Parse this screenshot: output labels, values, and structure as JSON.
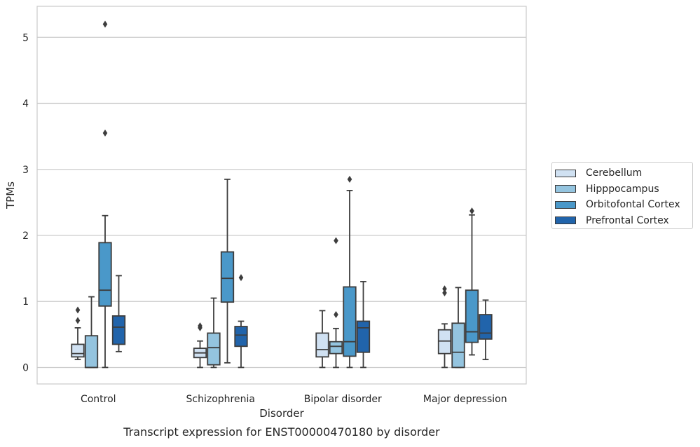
{
  "chart_data": {
    "type": "box",
    "title": "Transcript expression for ENST00000470180 by disorder",
    "xlabel": "Disorder",
    "ylabel": "TPMs",
    "ylim": [
      -0.25,
      5.47
    ],
    "yticks": [
      0,
      1,
      2,
      3,
      4,
      5
    ],
    "grid": "horizontal",
    "legend_position": "center-right",
    "categories": [
      "Control",
      "Schizophrenia",
      "Bipolar disorder",
      "Major depression"
    ],
    "series": [
      {
        "name": "Cerebellum",
        "color": "#d0e1f2",
        "boxes": [
          {
            "whislo": 0.12,
            "q1": 0.16,
            "med": 0.21,
            "q3": 0.35,
            "whishi": 0.6,
            "fliers": [
              0.71,
              0.87
            ]
          },
          {
            "whislo": 0.0,
            "q1": 0.15,
            "med": 0.22,
            "q3": 0.29,
            "whishi": 0.4,
            "fliers": [
              0.6,
              0.63
            ]
          },
          {
            "whislo": 0.0,
            "q1": 0.16,
            "med": 0.27,
            "q3": 0.52,
            "whishi": 0.86,
            "fliers": []
          },
          {
            "whislo": 0.0,
            "q1": 0.21,
            "med": 0.4,
            "q3": 0.57,
            "whishi": 0.66,
            "fliers": [
              1.13,
              1.19
            ]
          }
        ]
      },
      {
        "name": "Hipppocampus",
        "color": "#94c4df",
        "boxes": [
          {
            "whislo": 0.0,
            "q1": 0.0,
            "med": 0.0,
            "q3": 0.48,
            "whishi": 1.07,
            "fliers": []
          },
          {
            "whislo": 0.0,
            "q1": 0.04,
            "med": 0.3,
            "q3": 0.52,
            "whishi": 1.05,
            "fliers": []
          },
          {
            "whislo": 0.0,
            "q1": 0.21,
            "med": 0.32,
            "q3": 0.39,
            "whishi": 0.59,
            "fliers": [
              0.8,
              1.92
            ]
          },
          {
            "whislo": 0.0,
            "q1": 0.0,
            "med": 0.23,
            "q3": 0.67,
            "whishi": 1.21,
            "fliers": []
          }
        ]
      },
      {
        "name": "Orbitofontal Cortex",
        "color": "#4a98c9",
        "boxes": [
          {
            "whislo": 0.0,
            "q1": 0.93,
            "med": 1.17,
            "q3": 1.89,
            "whishi": 2.3,
            "fliers": [
              3.55,
              5.2
            ]
          },
          {
            "whislo": 0.07,
            "q1": 0.99,
            "med": 1.35,
            "q3": 1.75,
            "whishi": 2.85,
            "fliers": []
          },
          {
            "whislo": 0.0,
            "q1": 0.17,
            "med": 0.39,
            "q3": 1.22,
            "whishi": 2.68,
            "fliers": [
              2.85
            ]
          },
          {
            "whislo": 0.19,
            "q1": 0.38,
            "med": 0.54,
            "q3": 1.17,
            "whishi": 2.31,
            "fliers": [
              2.37
            ]
          }
        ]
      },
      {
        "name": "Prefrontal Cortex",
        "color": "#2164ab",
        "boxes": [
          {
            "whislo": 0.24,
            "q1": 0.35,
            "med": 0.61,
            "q3": 0.78,
            "whishi": 1.39,
            "fliers": []
          },
          {
            "whislo": 0.0,
            "q1": 0.32,
            "med": 0.49,
            "q3": 0.62,
            "whishi": 0.7,
            "fliers": [
              1.36
            ]
          },
          {
            "whislo": 0.0,
            "q1": 0.23,
            "med": 0.6,
            "q3": 0.7,
            "whishi": 1.3,
            "fliers": []
          },
          {
            "whislo": 0.12,
            "q1": 0.43,
            "med": 0.52,
            "q3": 0.8,
            "whishi": 1.02,
            "fliers": []
          }
        ]
      }
    ]
  }
}
